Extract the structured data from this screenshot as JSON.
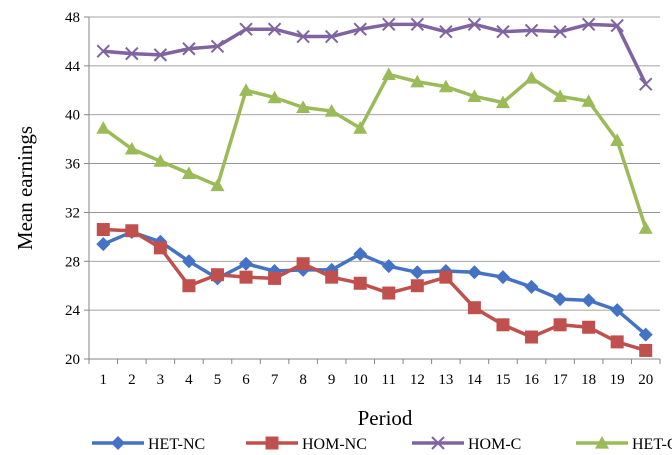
{
  "chart_data": {
    "type": "line",
    "xlabel": "Period",
    "ylabel": "Mean earnings",
    "ylim": [
      20,
      48
    ],
    "yticks": [
      20,
      24,
      28,
      32,
      36,
      40,
      44,
      48
    ],
    "grid": "horizontal",
    "legend_position": "bottom",
    "categories": [
      "1",
      "2",
      "3",
      "4",
      "5",
      "6",
      "7",
      "8",
      "9",
      "10",
      "11",
      "12",
      "13",
      "14",
      "15",
      "16",
      "17",
      "18",
      "19",
      "20"
    ],
    "series": [
      {
        "name": "HET-NC",
        "color": "#4472C4",
        "marker": "diamond",
        "values": [
          29.4,
          30.4,
          29.6,
          28.0,
          26.6,
          27.8,
          27.2,
          27.3,
          27.3,
          28.6,
          27.6,
          27.1,
          27.2,
          27.1,
          26.7,
          25.9,
          24.9,
          24.8,
          24.0,
          22.0
        ]
      },
      {
        "name": "HOM-NC",
        "color": "#C0504D",
        "marker": "square",
        "values": [
          30.6,
          30.5,
          29.1,
          26.0,
          26.9,
          26.7,
          26.6,
          27.8,
          26.7,
          26.2,
          25.4,
          26.0,
          26.7,
          24.2,
          22.8,
          21.8,
          22.8,
          22.6,
          21.4,
          20.7
        ]
      },
      {
        "name": "HOM-C",
        "color": "#8064A2",
        "marker": "x",
        "values": [
          45.2,
          45.0,
          44.9,
          45.4,
          45.6,
          47.0,
          47.0,
          46.4,
          46.4,
          47.0,
          47.4,
          47.4,
          46.8,
          47.4,
          46.8,
          46.9,
          46.8,
          47.4,
          47.3,
          42.5
        ]
      },
      {
        "name": "HET-C",
        "color": "#9BBB59",
        "marker": "triangle",
        "values": [
          38.9,
          37.2,
          36.2,
          35.2,
          34.2,
          42.0,
          41.4,
          40.6,
          40.3,
          38.9,
          43.3,
          42.7,
          42.3,
          41.5,
          41.0,
          43.0,
          41.5,
          41.1,
          37.9,
          30.7
        ]
      }
    ]
  }
}
